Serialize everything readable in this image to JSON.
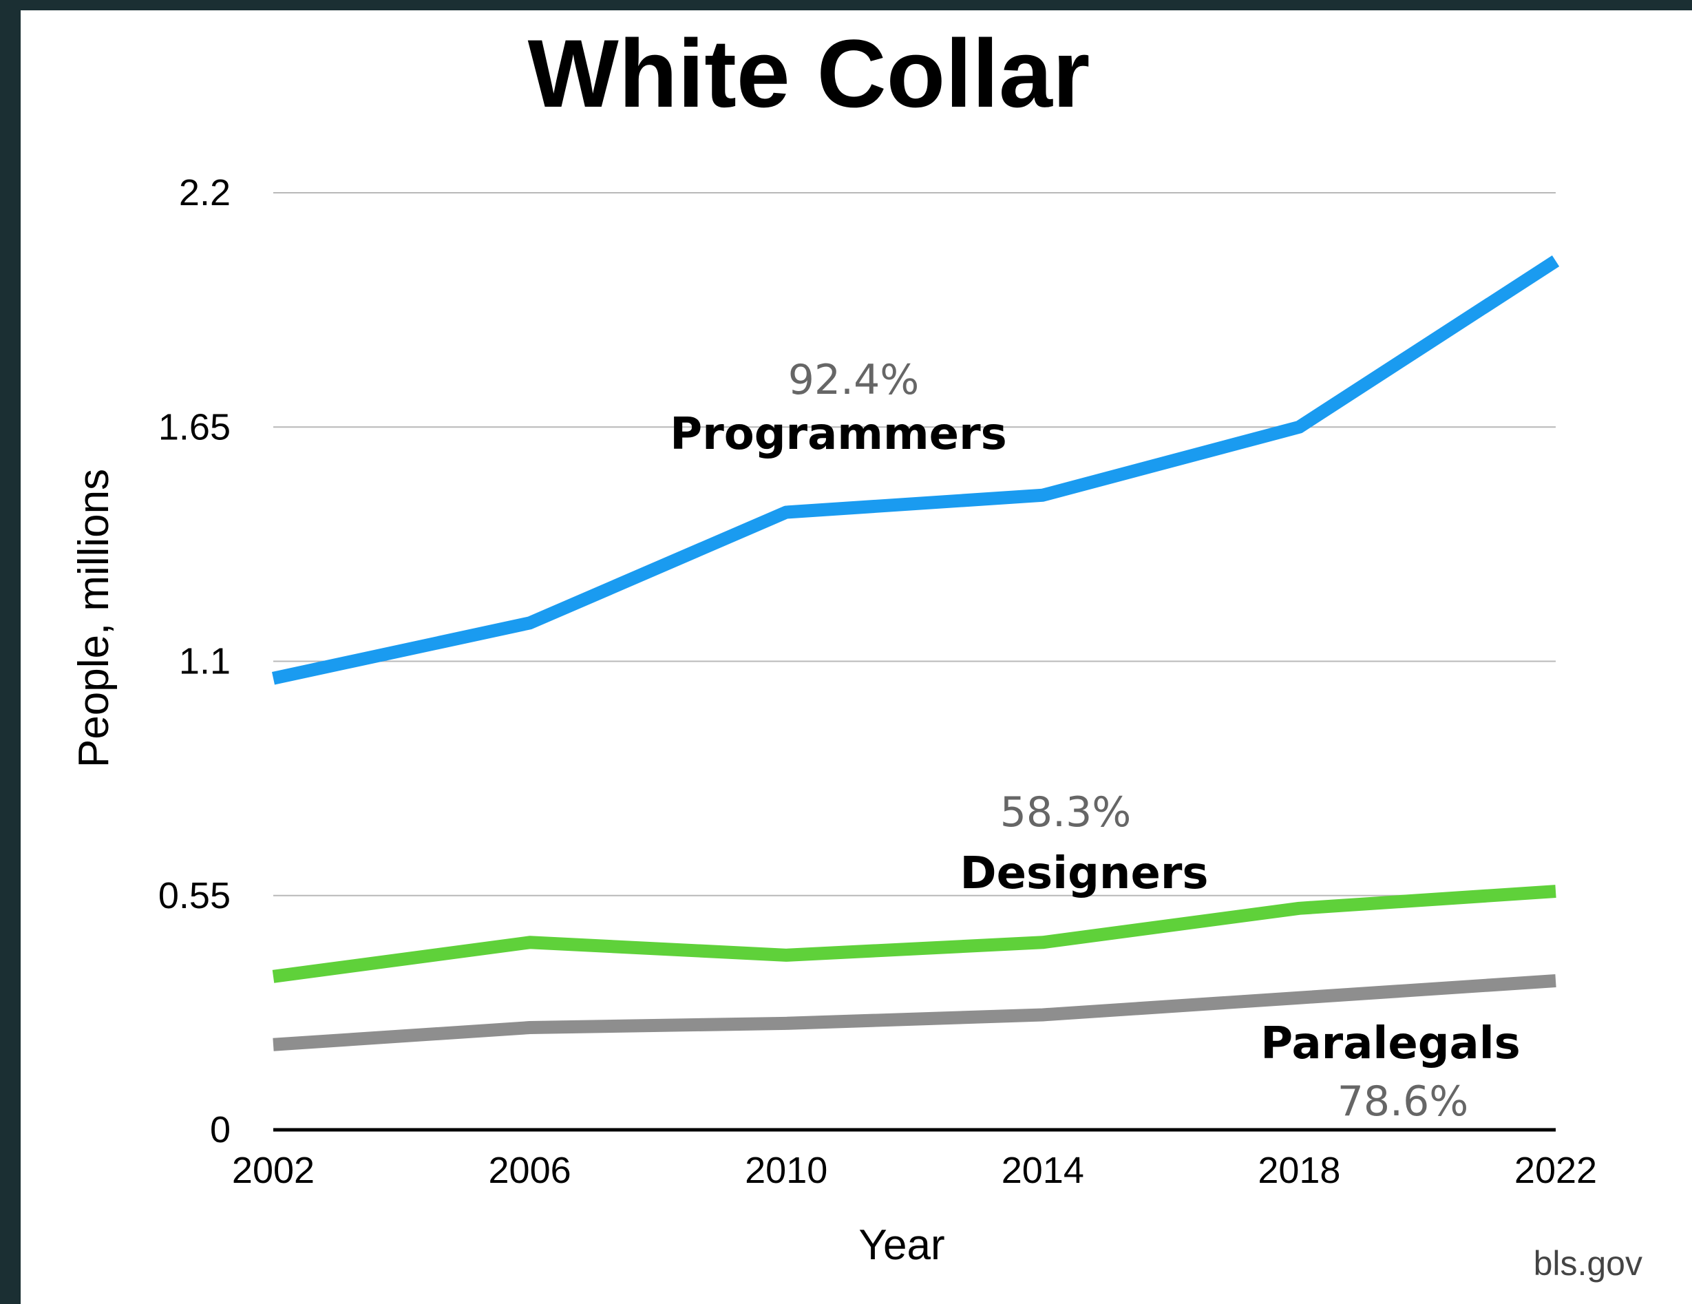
{
  "source": "bls.gov",
  "chart_data": {
    "type": "line",
    "title": "White Collar",
    "xlabel": "Year",
    "ylabel": "People, millions",
    "x": [
      2002,
      2006,
      2010,
      2014,
      2018,
      2022
    ],
    "ylim": [
      0,
      2.2
    ],
    "yticks": [
      "0",
      "0.55",
      "1.1",
      "1.65",
      "2.2"
    ],
    "ytick_values": [
      0,
      0.55,
      1.1,
      1.65,
      2.2
    ],
    "xticks": [
      "2002",
      "2006",
      "2010",
      "2014",
      "2018",
      "2022"
    ],
    "grid": true,
    "series": [
      {
        "name": "Programmers",
        "pct": "92.4%",
        "color": "#1a9bf0",
        "values": [
          1.06,
          1.19,
          1.45,
          1.49,
          1.65,
          2.04
        ]
      },
      {
        "name": "Designers",
        "pct": "58.3%",
        "color": "#5fd13a",
        "values": [
          0.36,
          0.44,
          0.41,
          0.44,
          0.52,
          0.56
        ]
      },
      {
        "name": "Paralegals",
        "pct": "78.6%",
        "color": "#8e8e8e",
        "values": [
          0.2,
          0.24,
          0.25,
          0.27,
          0.31,
          0.35
        ]
      }
    ]
  }
}
